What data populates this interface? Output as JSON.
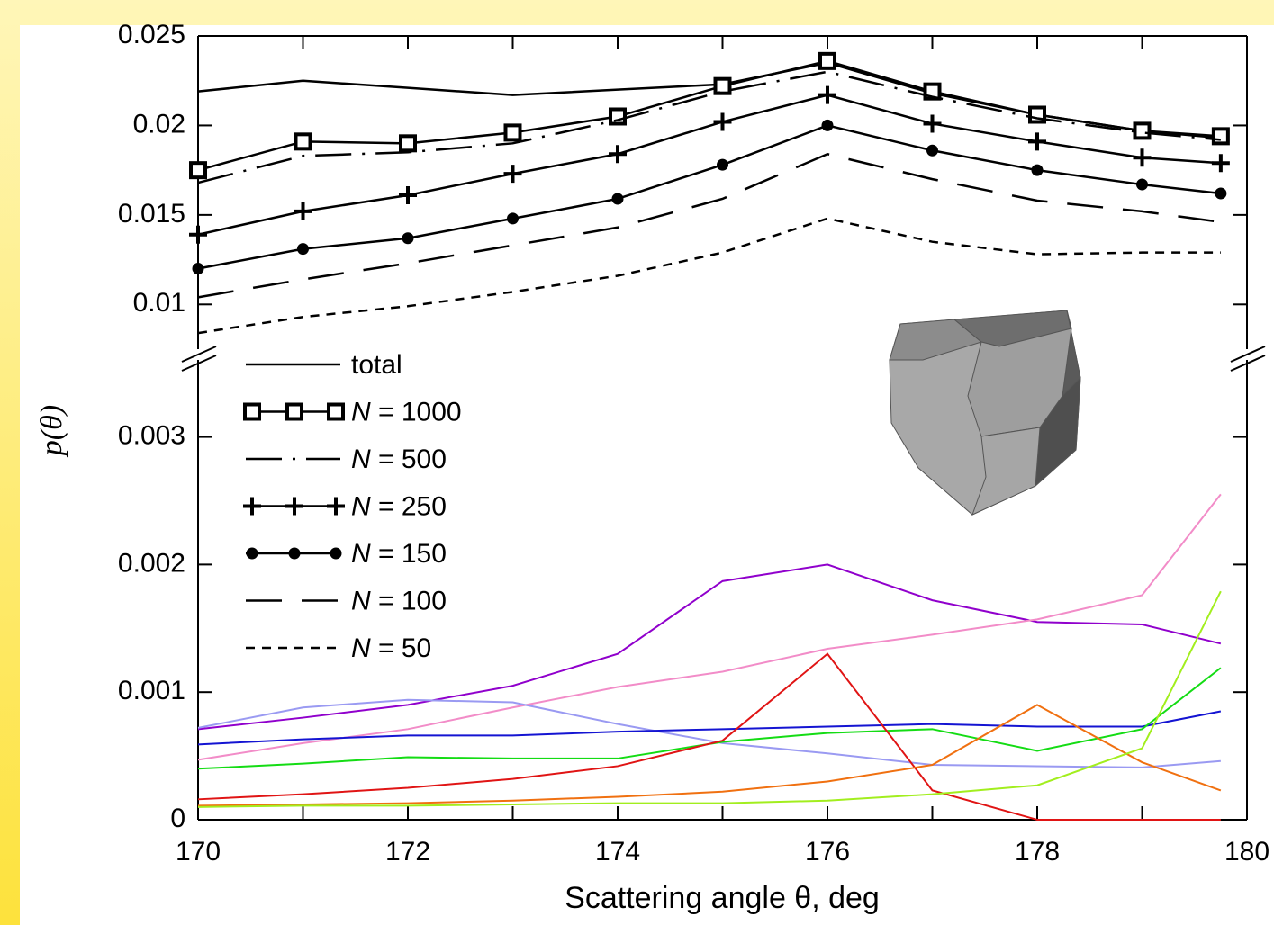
{
  "chart_data": {
    "type": "line",
    "xlabel": "Scattering angle θ, deg",
    "ylabel": "p(θ)",
    "x": [
      170,
      171,
      172,
      173,
      174,
      175,
      176,
      177,
      178,
      179,
      179.75
    ],
    "xlim": [
      170,
      180
    ],
    "xticks": [
      170,
      172,
      174,
      176,
      178,
      180
    ],
    "xminorticks": [
      171,
      173,
      175,
      177,
      179
    ],
    "panels": [
      {
        "ylim": [
          0.0073,
          0.025
        ],
        "yticks": [
          0.01,
          0.015,
          0.02,
          0.025
        ],
        "series": [
          {
            "name": "total",
            "color": "#000000",
            "style": "solid",
            "values": [
              0.0219,
              0.0225,
              0.0221,
              0.0217,
              0.022,
              0.0223,
              0.0235,
              0.0218,
              0.0206,
              0.0197,
              0.0193
            ]
          },
          {
            "name": "N = 1000",
            "color": "#000000",
            "style": "solid",
            "marker": "square",
            "values": [
              0.0175,
              0.0191,
              0.019,
              0.0196,
              0.0205,
              0.0222,
              0.0236,
              0.0219,
              0.0206,
              0.0197,
              0.0194
            ]
          },
          {
            "name": "N = 500",
            "color": "#000000",
            "style": "dashdot",
            "values": [
              0.0168,
              0.0183,
              0.0185,
              0.019,
              0.0203,
              0.0219,
              0.023,
              0.0216,
              0.0204,
              0.0196,
              0.0192
            ]
          },
          {
            "name": "N = 250",
            "color": "#000000",
            "style": "solid",
            "marker": "plus",
            "values": [
              0.0139,
              0.0152,
              0.0161,
              0.0173,
              0.0184,
              0.0202,
              0.0217,
              0.0201,
              0.0191,
              0.0182,
              0.0179
            ]
          },
          {
            "name": "N = 150",
            "color": "#000000",
            "style": "solid",
            "marker": "circle",
            "values": [
              0.012,
              0.0131,
              0.0137,
              0.0148,
              0.0159,
              0.0178,
              0.02,
              0.0186,
              0.0175,
              0.0167,
              0.0162
            ]
          },
          {
            "name": "N = 100",
            "color": "#000000",
            "style": "dashed",
            "values": [
              0.0104,
              0.0114,
              0.0123,
              0.0133,
              0.0143,
              0.0159,
              0.0184,
              0.017,
              0.0158,
              0.0152,
              0.0146
            ]
          },
          {
            "name": "N = 50",
            "color": "#000000",
            "style": "shortdash",
            "values": [
              0.0084,
              0.0093,
              0.0099,
              0.0107,
              0.0116,
              0.0129,
              0.0148,
              0.0135,
              0.0128,
              0.0129,
              0.0129
            ]
          }
        ]
      },
      {
        "ylim": [
          0,
          0.00366
        ],
        "yticks": [
          0,
          0.001,
          0.002,
          0.003
        ],
        "series": [
          {
            "color": "#9000cc",
            "values": [
              0.00071,
              0.0008,
              0.0009,
              0.00105,
              0.0013,
              0.00187,
              0.002,
              0.00172,
              0.00155,
              0.00153,
              0.00138
            ]
          },
          {
            "color": "#f28cc8",
            "values": [
              0.00047,
              0.0006,
              0.00071,
              0.00088,
              0.00104,
              0.00116,
              0.00134,
              0.00145,
              0.00157,
              0.00176,
              0.00255
            ]
          },
          {
            "color": "#9a9af2",
            "values": [
              0.00072,
              0.00088,
              0.00094,
              0.00092,
              0.00075,
              0.0006,
              0.00052,
              0.00043,
              0.00042,
              0.00041,
              0.00046
            ]
          },
          {
            "color": "#1414d2",
            "values": [
              0.00059,
              0.00063,
              0.00066,
              0.00066,
              0.00069,
              0.00071,
              0.00073,
              0.00075,
              0.00073,
              0.00073,
              0.00085
            ]
          },
          {
            "color": "#14dc14",
            "values": [
              0.0004,
              0.00044,
              0.00049,
              0.00048,
              0.00048,
              0.00061,
              0.00068,
              0.00071,
              0.00054,
              0.00071,
              0.00119
            ]
          },
          {
            "color": "#e01414",
            "values": [
              0.00016,
              0.0002,
              0.00025,
              0.00032,
              0.00042,
              0.00062,
              0.0013,
              0.00023,
              0,
              0,
              0
            ]
          },
          {
            "color": "#f07010",
            "values": [
              0.00011,
              0.00012,
              0.00013,
              0.00015,
              0.00018,
              0.00022,
              0.0003,
              0.00043,
              0.0009,
              0.00045,
              0.00023
            ]
          },
          {
            "color": "#a2ee1e",
            "values": [
              0.0001,
              0.00011,
              0.00011,
              0.00012,
              0.00013,
              0.00013,
              0.00015,
              0.0002,
              0.00027,
              0.00056,
              0.00179
            ]
          }
        ]
      }
    ]
  }
}
